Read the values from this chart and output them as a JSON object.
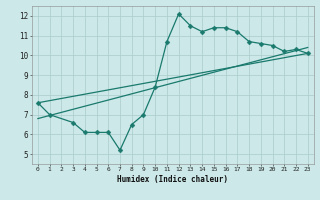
{
  "xlabel": "Humidex (Indice chaleur)",
  "ylabel": "",
  "bg_color": "#cce8e8",
  "grid_color": "#aacccc",
  "line_color": "#1a7a6e",
  "xlim": [
    -0.5,
    23.5
  ],
  "ylim": [
    4.5,
    12.5
  ],
  "xticks": [
    0,
    1,
    2,
    3,
    4,
    5,
    6,
    7,
    8,
    9,
    10,
    11,
    12,
    13,
    14,
    15,
    16,
    17,
    18,
    19,
    20,
    21,
    22,
    23
  ],
  "yticks": [
    5,
    6,
    7,
    8,
    9,
    10,
    11,
    12
  ],
  "line1_x": [
    0,
    1,
    3,
    4,
    5,
    6,
    7,
    8,
    9,
    10,
    11,
    12,
    13,
    14,
    15,
    16,
    17,
    18,
    19,
    20,
    21,
    22,
    23
  ],
  "line1_y": [
    7.6,
    7.0,
    6.6,
    6.1,
    6.1,
    6.1,
    5.2,
    6.5,
    7.0,
    8.4,
    10.7,
    12.1,
    11.5,
    11.2,
    11.4,
    11.4,
    11.2,
    10.7,
    10.6,
    10.5,
    10.2,
    10.3,
    10.1
  ],
  "line2_x": [
    0,
    23
  ],
  "line2_y": [
    7.6,
    10.1
  ],
  "line3_x": [
    0,
    23
  ],
  "line3_y": [
    6.8,
    10.4
  ],
  "marker_size": 2.5,
  "line_width": 0.9,
  "tick_fontsize": 5.0,
  "xlabel_fontsize": 5.5
}
